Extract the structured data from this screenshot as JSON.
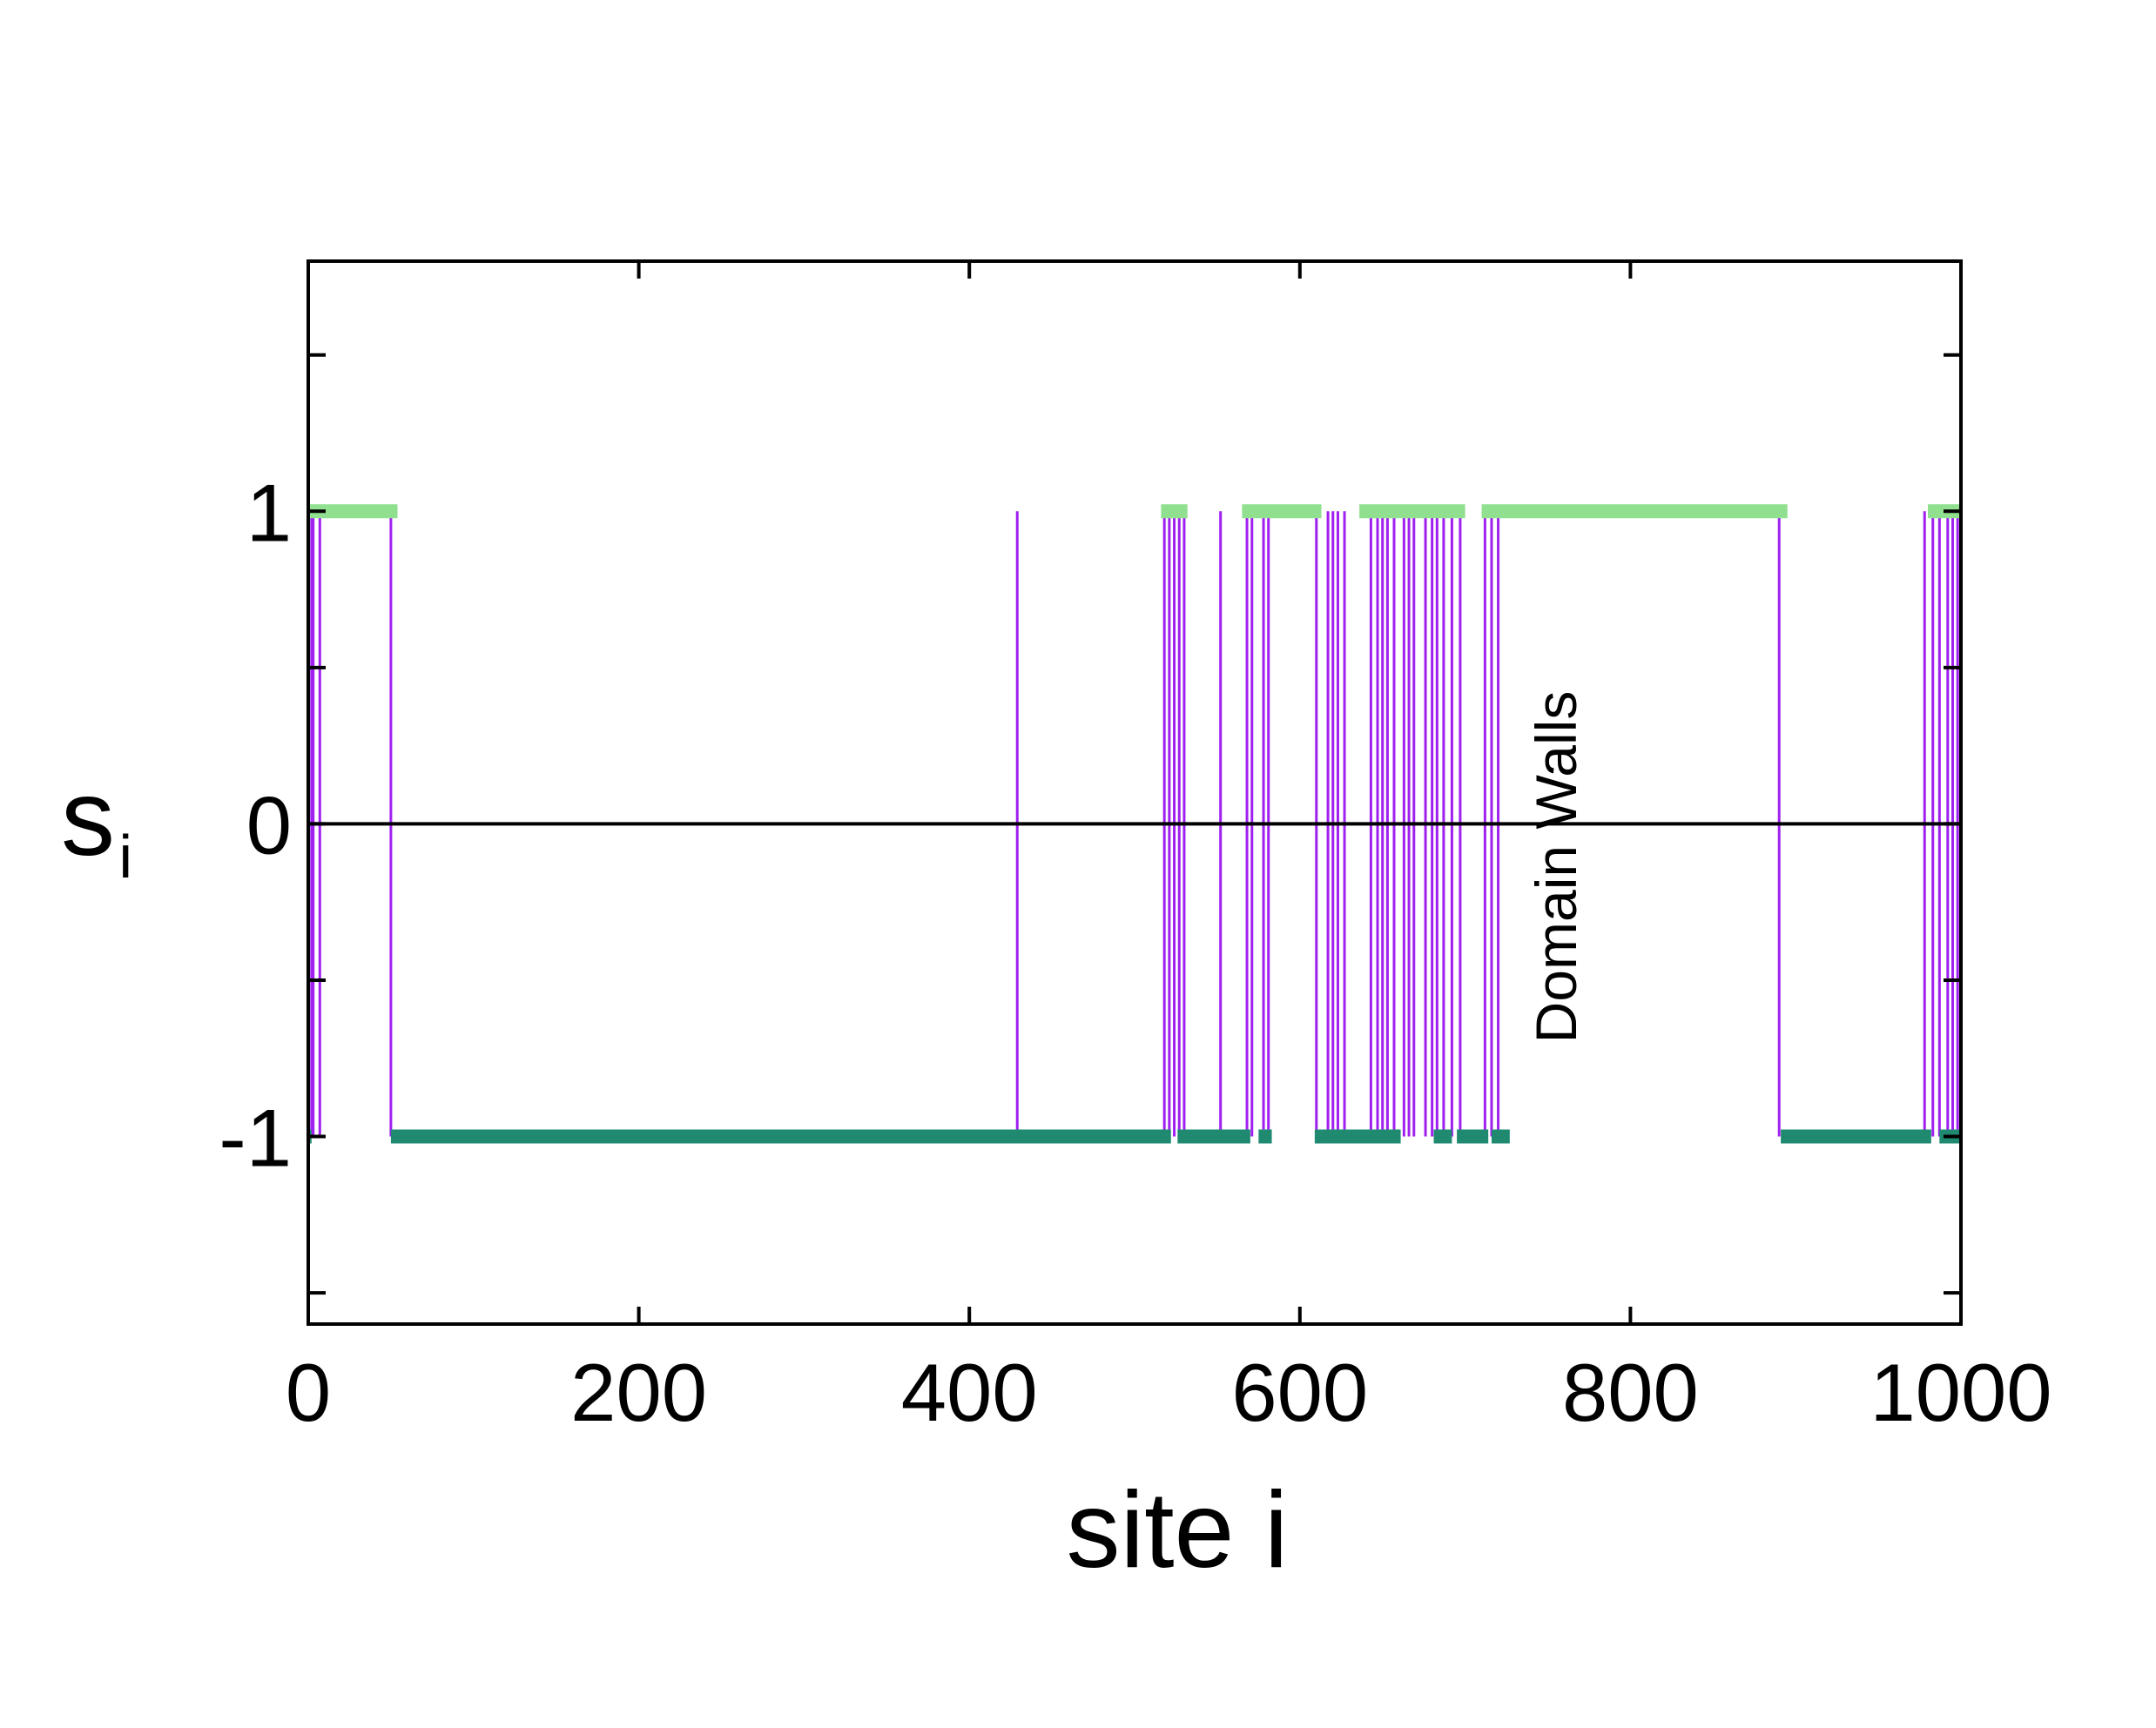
{
  "chart_data": {
    "type": "line",
    "title": "",
    "xlabel": "site i",
    "ylabel_main": "s",
    "ylabel_sub": "i",
    "xlim": [
      0,
      1000
    ],
    "ylim": [
      -1.6,
      1.8
    ],
    "x_ticks": [
      0,
      200,
      400,
      600,
      800,
      1000
    ],
    "x_tick_labels": [
      "0",
      "200",
      "400",
      "600",
      "800",
      "1000"
    ],
    "y_ticks": [
      1.5,
      1,
      0.5,
      0,
      -0.5,
      -1,
      -1.5
    ],
    "y_tick_labels": [
      "1",
      "0",
      "-1"
    ],
    "y_labeled_values": [
      1,
      0,
      -1
    ],
    "grid": false,
    "annotation": "Domain Walls",
    "reference_line_y": 0,
    "colors": {
      "up": "#90e090",
      "down": "#1f8a70",
      "wall": "#a020f0",
      "axis": "#000000"
    },
    "series": [
      {
        "role": "spin up segments (s=+1)",
        "value": 1,
        "segments": [
          [
            1,
            54
          ],
          [
            516,
            532
          ],
          [
            565,
            613
          ],
          [
            636,
            700
          ],
          [
            710,
            895
          ],
          [
            980,
            1000
          ]
        ]
      },
      {
        "role": "spin down segments (s=-1)",
        "value": -1,
        "segments": [
          [
            0,
            2
          ],
          [
            50,
            522
          ],
          [
            526,
            570
          ],
          [
            575,
            583
          ],
          [
            609,
            613
          ],
          [
            613,
            661
          ],
          [
            681,
            692
          ],
          [
            695,
            714
          ],
          [
            716,
            727
          ],
          [
            891,
            982
          ],
          [
            987,
            1000
          ]
        ]
      },
      {
        "role": "domain wall transitions",
        "x": [
          2,
          3,
          7,
          50,
          429,
          518,
          521,
          524,
          527,
          530,
          552,
          568,
          571,
          578,
          581,
          610,
          617,
          620,
          623,
          627,
          643,
          647,
          650,
          653,
          657,
          663,
          666,
          669,
          676,
          680,
          683,
          687,
          692,
          697,
          712,
          716,
          720,
          890,
          978,
          983,
          987,
          992,
          995,
          998
        ]
      }
    ]
  }
}
